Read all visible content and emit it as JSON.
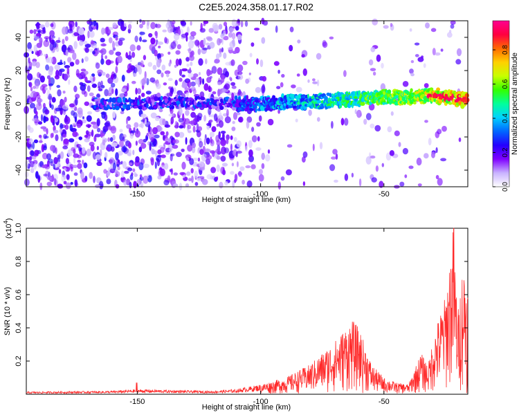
{
  "title": "C2E5.2024.358.01.17.R02",
  "chart_data": [
    {
      "type": "heatmap",
      "xlabel": "Height of straight line (km)",
      "ylabel": "Frequency (Hz)",
      "xlim": [
        -195,
        -16
      ],
      "ylim": [
        -50,
        50
      ],
      "x_ticks": [
        -150,
        -100,
        -50
      ],
      "y_ticks": [
        -40,
        -20,
        0,
        20,
        40
      ],
      "colorbar": {
        "label": "Normalized spectral amplitude",
        "range": [
          0,
          0.97
        ],
        "ticks": [
          0.0,
          0.2,
          0.4,
          0.6,
          0.8
        ],
        "colormap": [
          "#ffffff",
          "#c9b3ff",
          "#7f00ff",
          "#2400ff",
          "#0066ff",
          "#00d2ff",
          "#00ff9a",
          "#33ff00",
          "#c8ff00",
          "#ffd000",
          "#ff6a00",
          "#ff0040",
          "#ff0090"
        ]
      },
      "trace": {
        "description_points_km_hz": [
          [
            -165,
            0
          ],
          [
            -150,
            0
          ],
          [
            -130,
            1
          ],
          [
            -110,
            0
          ],
          [
            -100,
            0
          ],
          [
            -90,
            1
          ],
          [
            -80,
            1
          ],
          [
            -70,
            2
          ],
          [
            -60,
            3
          ],
          [
            -50,
            4
          ],
          [
            -40,
            4
          ],
          [
            -30,
            5
          ],
          [
            -20,
            3
          ],
          [
            -16,
            2
          ]
        ],
        "peak_amplitude_near_km": -25
      },
      "grid": false
    },
    {
      "type": "line",
      "xlabel": "Height of straight line (km)",
      "ylabel": "SNR (10 * v/v)",
      "yscale_note": "(x10",
      "yscale_exp": "4",
      "xlim": [
        -195,
        -16
      ],
      "ylim": [
        0,
        1.0
      ],
      "x_ticks": [
        -150,
        -100,
        -50
      ],
      "y_ticks": [
        0.2,
        0.4,
        0.6,
        0.8,
        1.0
      ],
      "color": "#ff2a2a",
      "envelope": [
        [
          -195,
          0.015
        ],
        [
          -160,
          0.02
        ],
        [
          -150,
          0.03
        ],
        [
          -120,
          0.02
        ],
        [
          -110,
          0.03
        ],
        [
          -100,
          0.06
        ],
        [
          -90,
          0.1
        ],
        [
          -80,
          0.18
        ],
        [
          -70,
          0.32
        ],
        [
          -63,
          0.45
        ],
        [
          -60,
          0.4
        ],
        [
          -55,
          0.18
        ],
        [
          -50,
          0.1
        ],
        [
          -45,
          0.07
        ],
        [
          -40,
          0.06
        ],
        [
          -35,
          0.25
        ],
        [
          -32,
          0.18
        ],
        [
          -30,
          0.35
        ],
        [
          -25,
          0.6
        ],
        [
          -22,
          1.0
        ],
        [
          -20,
          0.5
        ],
        [
          -18,
          0.8
        ],
        [
          -16,
          0.7
        ]
      ],
      "grid": false
    }
  ]
}
